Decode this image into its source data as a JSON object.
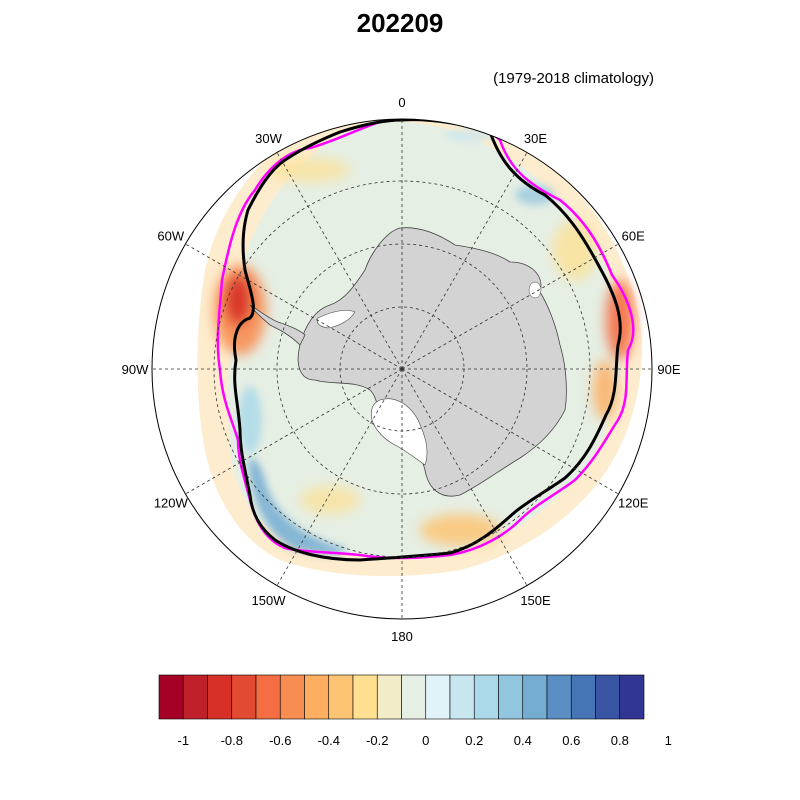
{
  "title": "202209",
  "subtitle": "(1979-2018 climatology)",
  "longitude_labels": [
    {
      "text": "0",
      "lon": 0
    },
    {
      "text": "30E",
      "lon": 30
    },
    {
      "text": "60E",
      "lon": 60
    },
    {
      "text": "90E",
      "lon": 90
    },
    {
      "text": "120E",
      "lon": 120
    },
    {
      "text": "150E",
      "lon": 150
    },
    {
      "text": "180",
      "lon": 180
    },
    {
      "text": "150W",
      "lon": -150
    },
    {
      "text": "120W",
      "lon": -120
    },
    {
      "text": "90W",
      "lon": -90
    },
    {
      "text": "60W",
      "lon": -60
    },
    {
      "text": "30W",
      "lon": -30
    }
  ],
  "colorbar": {
    "tick_labels": [
      "-1",
      "-0.8",
      "-0.6",
      "-0.4",
      "-0.2",
      "0",
      "0.2",
      "0.4",
      "0.6",
      "0.8",
      "1"
    ],
    "colors": [
      "#a50026",
      "#c0202a",
      "#d73027",
      "#e34a33",
      "#f46d43",
      "#f88d52",
      "#fdae61",
      "#fdc474",
      "#fee090",
      "#f2ecc8",
      "#e6efe4",
      "#e0f3f8",
      "#c8e6f0",
      "#abd9e9",
      "#92c5de",
      "#74add1",
      "#5b8fc4",
      "#4575b4",
      "#3a54a4",
      "#313695"
    ]
  },
  "map_colors": {
    "land": "#d3d3d3",
    "ice_background": "#e6efe4",
    "climatology_edge": "#ff00ff",
    "current_edge": "#000000",
    "positive_anomaly": "#74add1",
    "negative_anomaly": "#f46d43"
  }
}
